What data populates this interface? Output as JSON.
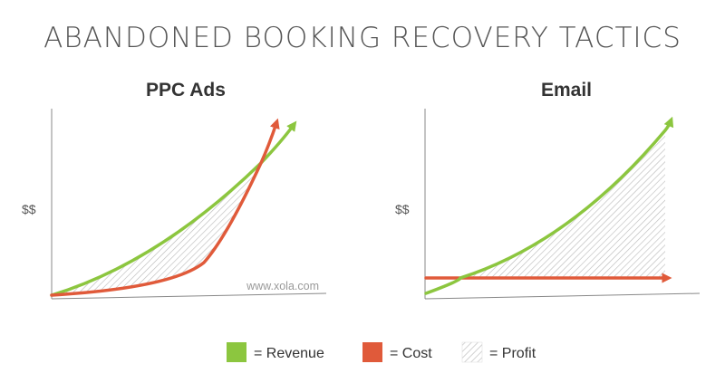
{
  "title": "ABANDONED BOOKING RECOVERY TACTICS",
  "watermark": "www.xola.com",
  "colors": {
    "revenue": "#8cc63f",
    "cost": "#e05a3a",
    "axis": "#888888",
    "text": "#333333",
    "title": "#555555"
  },
  "legend": {
    "revenue": "= Revenue",
    "cost": "= Cost",
    "profit": "= Profit"
  },
  "chart_data": [
    {
      "type": "line",
      "title": "PPC Ads",
      "ylabel": "$$",
      "xlabel": "",
      "grid": false,
      "shaded_area": "profit between revenue and cost",
      "series": [
        {
          "name": "Revenue",
          "color": "#8cc63f"
        },
        {
          "name": "Cost",
          "color": "#e05a3a"
        }
      ]
    },
    {
      "type": "line",
      "title": "Email",
      "ylabel": "$$",
      "xlabel": "",
      "grid": false,
      "shaded_area": "profit between revenue and cost",
      "series": [
        {
          "name": "Revenue",
          "color": "#8cc63f"
        },
        {
          "name": "Cost",
          "color": "#e05a3a"
        }
      ]
    }
  ]
}
